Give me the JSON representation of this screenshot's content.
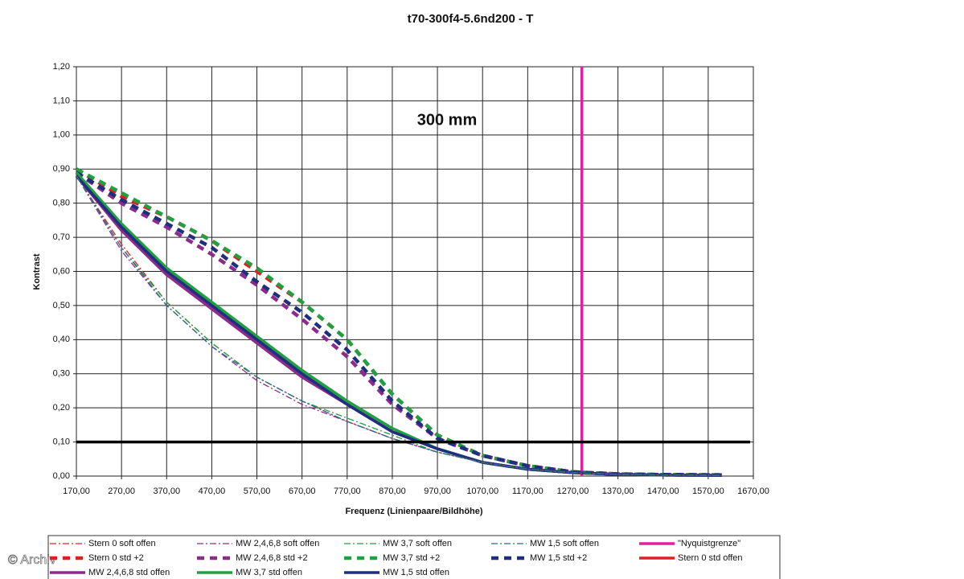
{
  "chart_data": {
    "type": "line",
    "title": "t70-300f4-5.6nd200 - T",
    "annotation": "300 mm",
    "xlabel": "Frequenz (Linienpaare/Bildhöhe)",
    "ylabel": "Kontrast",
    "watermark": "© Archiv",
    "x": [
      170,
      270,
      370,
      470,
      570,
      670,
      770,
      870,
      970,
      1070,
      1170,
      1270,
      1370,
      1470,
      1600
    ],
    "xlim": [
      170,
      1670
    ],
    "ylim": [
      0,
      1.2
    ],
    "xticks": [
      {
        "value": 170,
        "label": "170,00"
      },
      {
        "value": 270,
        "label": "270,00"
      },
      {
        "value": 370,
        "label": "370,00"
      },
      {
        "value": 470,
        "label": "470,00"
      },
      {
        "value": 570,
        "label": "570,00"
      },
      {
        "value": 670,
        "label": "670,00"
      },
      {
        "value": 770,
        "label": "770,00"
      },
      {
        "value": 870,
        "label": "870,00"
      },
      {
        "value": 970,
        "label": "970,00"
      },
      {
        "value": 1070,
        "label": "1070,00"
      },
      {
        "value": 1170,
        "label": "1170,00"
      },
      {
        "value": 1270,
        "label": "1270,00"
      },
      {
        "value": 1370,
        "label": "1370,00"
      },
      {
        "value": 1470,
        "label": "1470,00"
      },
      {
        "value": 1570,
        "label": "1570,00"
      },
      {
        "value": 1670,
        "label": "1670,00"
      }
    ],
    "yticks": [
      {
        "value": 0,
        "label": "0,00"
      },
      {
        "value": 0.1,
        "label": "0,10"
      },
      {
        "value": 0.2,
        "label": "0,20"
      },
      {
        "value": 0.3,
        "label": "0,30"
      },
      {
        "value": 0.4,
        "label": "0,40"
      },
      {
        "value": 0.5,
        "label": "0,50"
      },
      {
        "value": 0.6,
        "label": "0,60"
      },
      {
        "value": 0.7,
        "label": "0,70"
      },
      {
        "value": 0.8,
        "label": "0,80"
      },
      {
        "value": 0.9,
        "label": "0,90"
      },
      {
        "value": 1.0,
        "label": "1,00"
      },
      {
        "value": 1.1,
        "label": "1,10"
      },
      {
        "value": 1.2,
        "label": "1,20"
      }
    ],
    "grid": true,
    "hline": 0.1,
    "series": [
      {
        "name": "Stern 0 soft offen",
        "color": "#e02020",
        "style": "dashdot",
        "values": [
          0.88,
          0.68,
          0.51,
          0.39,
          0.29,
          0.22,
          0.16,
          0.11,
          0.07,
          0.04,
          0.02,
          0.01,
          0.005,
          0.003,
          0.002
        ]
      },
      {
        "name": "MW 2,4,6,8 soft offen",
        "color": "#8b2b8b",
        "style": "dashdot",
        "values": [
          0.88,
          0.66,
          0.5,
          0.38,
          0.28,
          0.21,
          0.16,
          0.11,
          0.07,
          0.04,
          0.02,
          0.01,
          0.005,
          0.003,
          0.002
        ]
      },
      {
        "name": "MW 3,7 soft offen",
        "color": "#20a040",
        "style": "dashdot",
        "values": [
          0.88,
          0.67,
          0.51,
          0.39,
          0.29,
          0.22,
          0.17,
          0.12,
          0.07,
          0.04,
          0.02,
          0.01,
          0.005,
          0.003,
          0.002
        ]
      },
      {
        "name": "MW 1,5 soft offen",
        "color": "#2a6f8f",
        "style": "dashdot",
        "values": [
          0.88,
          0.67,
          0.5,
          0.38,
          0.29,
          0.22,
          0.16,
          0.11,
          0.07,
          0.04,
          0.02,
          0.01,
          0.005,
          0.003,
          0.002
        ]
      },
      {
        "name": "\"Nyquistgrenze\"",
        "color": "#e020a0",
        "style": "nyquist",
        "x": [
          1290,
          1290
        ],
        "values": [
          0,
          1.2
        ]
      },
      {
        "name": "Stern 0 std +2",
        "color": "#e02020",
        "style": "dash",
        "values": [
          0.9,
          0.82,
          0.76,
          0.69,
          0.6,
          0.51,
          0.4,
          0.24,
          0.12,
          0.06,
          0.03,
          0.012,
          0.006,
          0.004,
          0.003
        ]
      },
      {
        "name": "MW 2,4,6,8 std +2",
        "color": "#8b2b8b",
        "style": "dash",
        "values": [
          0.89,
          0.8,
          0.73,
          0.65,
          0.56,
          0.46,
          0.35,
          0.21,
          0.11,
          0.06,
          0.03,
          0.012,
          0.006,
          0.004,
          0.003
        ]
      },
      {
        "name": "MW 3,7 std +2",
        "color": "#20a040",
        "style": "dash",
        "values": [
          0.9,
          0.83,
          0.76,
          0.69,
          0.61,
          0.51,
          0.4,
          0.24,
          0.12,
          0.06,
          0.03,
          0.012,
          0.006,
          0.004,
          0.003
        ]
      },
      {
        "name": "MW 1,5 std +2",
        "color": "#1f2f7f",
        "style": "dash",
        "values": [
          0.89,
          0.81,
          0.74,
          0.67,
          0.57,
          0.48,
          0.37,
          0.22,
          0.11,
          0.06,
          0.03,
          0.012,
          0.006,
          0.004,
          0.003
        ]
      },
      {
        "name": "Stern 0 std offen",
        "color": "#e02020",
        "style": "solid",
        "values": [
          0.89,
          0.73,
          0.6,
          0.5,
          0.4,
          0.3,
          0.21,
          0.13,
          0.08,
          0.04,
          0.02,
          0.01,
          0.005,
          0.003,
          0.002
        ]
      },
      {
        "name": "MW 2,4,6,8 std offen",
        "color": "#8b2b8b",
        "style": "solid",
        "values": [
          0.88,
          0.72,
          0.59,
          0.49,
          0.39,
          0.29,
          0.21,
          0.13,
          0.08,
          0.04,
          0.02,
          0.01,
          0.005,
          0.003,
          0.002
        ]
      },
      {
        "name": "MW 3,7 std offen",
        "color": "#20a040",
        "style": "solid",
        "values": [
          0.89,
          0.74,
          0.61,
          0.51,
          0.41,
          0.31,
          0.22,
          0.14,
          0.08,
          0.04,
          0.02,
          0.01,
          0.005,
          0.003,
          0.002
        ]
      },
      {
        "name": "MW 1,5 std offen",
        "color": "#1f2f7f",
        "style": "solid",
        "values": [
          0.88,
          0.73,
          0.6,
          0.5,
          0.4,
          0.3,
          0.21,
          0.13,
          0.08,
          0.04,
          0.02,
          0.01,
          0.005,
          0.003,
          0.002
        ]
      }
    ]
  }
}
